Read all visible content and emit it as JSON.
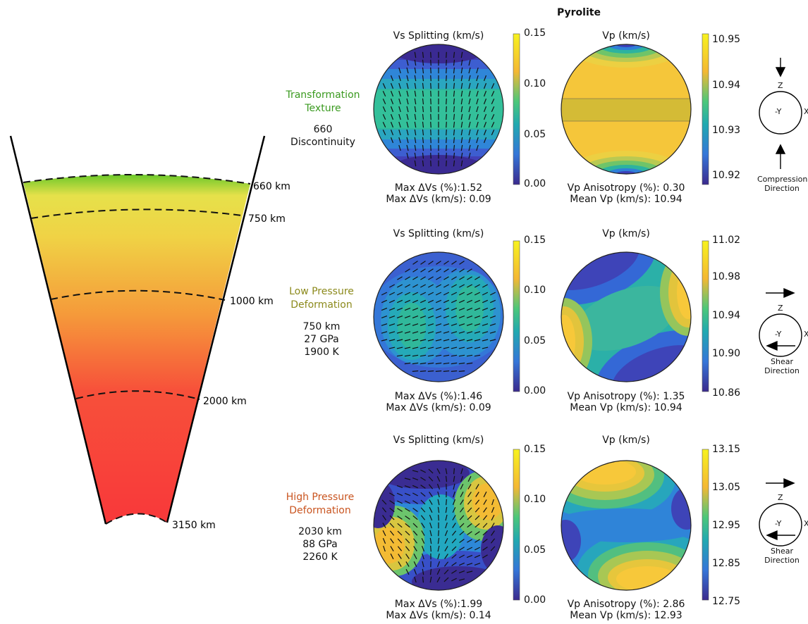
{
  "title": "Pyrolite",
  "depth_labels": [
    "660 km",
    "750 km",
    "1000 km",
    "2000 km",
    "3150 km"
  ],
  "colors": {
    "transformation": "#3a9a1f",
    "low_pressure": "#8c8a1c",
    "high_pressure": "#c9541f",
    "mantle_top": "#6cc82a",
    "mantle_mid": "#f0c63a",
    "mantle_bottom": "#f8383a"
  },
  "rows": [
    {
      "label_line1": "Transformation",
      "label_line2": "Texture",
      "conditions": [
        "660",
        "Discontinuity"
      ],
      "vs_title": "Vs Splitting (km/s)",
      "vs_ticks": [
        "0.15",
        "0.10",
        "0.05",
        "0.00"
      ],
      "vs_stat1": "Max ΔVs (%):1.52",
      "vs_stat2": "Max ΔVs (km/s): 0.09",
      "vp_title": "Vp (km/s)",
      "vp_ticks": [
        "10.95",
        "10.94",
        "10.93",
        "10.92"
      ],
      "vp_stat1": "Vp Anisotropy (%): 0.30",
      "vp_stat2": "Mean Vp (km/s): 10.94",
      "axis_z": "Z",
      "axis_y": "-Y",
      "axis_x": "X",
      "dir_line1": "Compression",
      "dir_line2": "Direction"
    },
    {
      "label_line1": "Low Pressure",
      "label_line2": "Deformation",
      "conditions": [
        "750 km",
        "27 GPa",
        "1900 K"
      ],
      "vs_title": "Vs Splitting (km/s)",
      "vs_ticks": [
        "0.15",
        "0.10",
        "0.05",
        "0.00"
      ],
      "vs_stat1": "Max ΔVs (%):1.46",
      "vs_stat2": "Max ΔVs (km/s): 0.09",
      "vp_title": "Vp (km/s)",
      "vp_ticks": [
        "11.02",
        "10.98",
        "10.94",
        "10.90",
        "10.86"
      ],
      "vp_stat1": "Vp Anisotropy (%): 1.35",
      "vp_stat2": "Mean Vp (km/s): 10.94",
      "axis_z": "Z",
      "axis_y": "-Y",
      "axis_x": "X",
      "dir_line1": "Shear",
      "dir_line2": "Direction"
    },
    {
      "label_line1": "High Pressure",
      "label_line2": "Deformation",
      "conditions": [
        "2030 km",
        "88 GPa",
        "2260 K"
      ],
      "vs_title": "Vs Splitting (km/s)",
      "vs_ticks": [
        "0.15",
        "0.10",
        "0.05",
        "0.00"
      ],
      "vs_stat1": "Max ΔVs (%):1.99",
      "vs_stat2": "Max ΔVs (km/s): 0.14",
      "vp_title": "Vp (km/s)",
      "vp_ticks": [
        "13.15",
        "13.05",
        "12.95",
        "12.85",
        "12.75"
      ],
      "vp_stat1": "Vp Anisotropy (%): 2.86",
      "vp_stat2": "Mean Vp (km/s): 12.93",
      "axis_z": "Z",
      "axis_y": "-Y",
      "axis_x": "X",
      "dir_line1": "Shear",
      "dir_line2": "Direction"
    }
  ]
}
